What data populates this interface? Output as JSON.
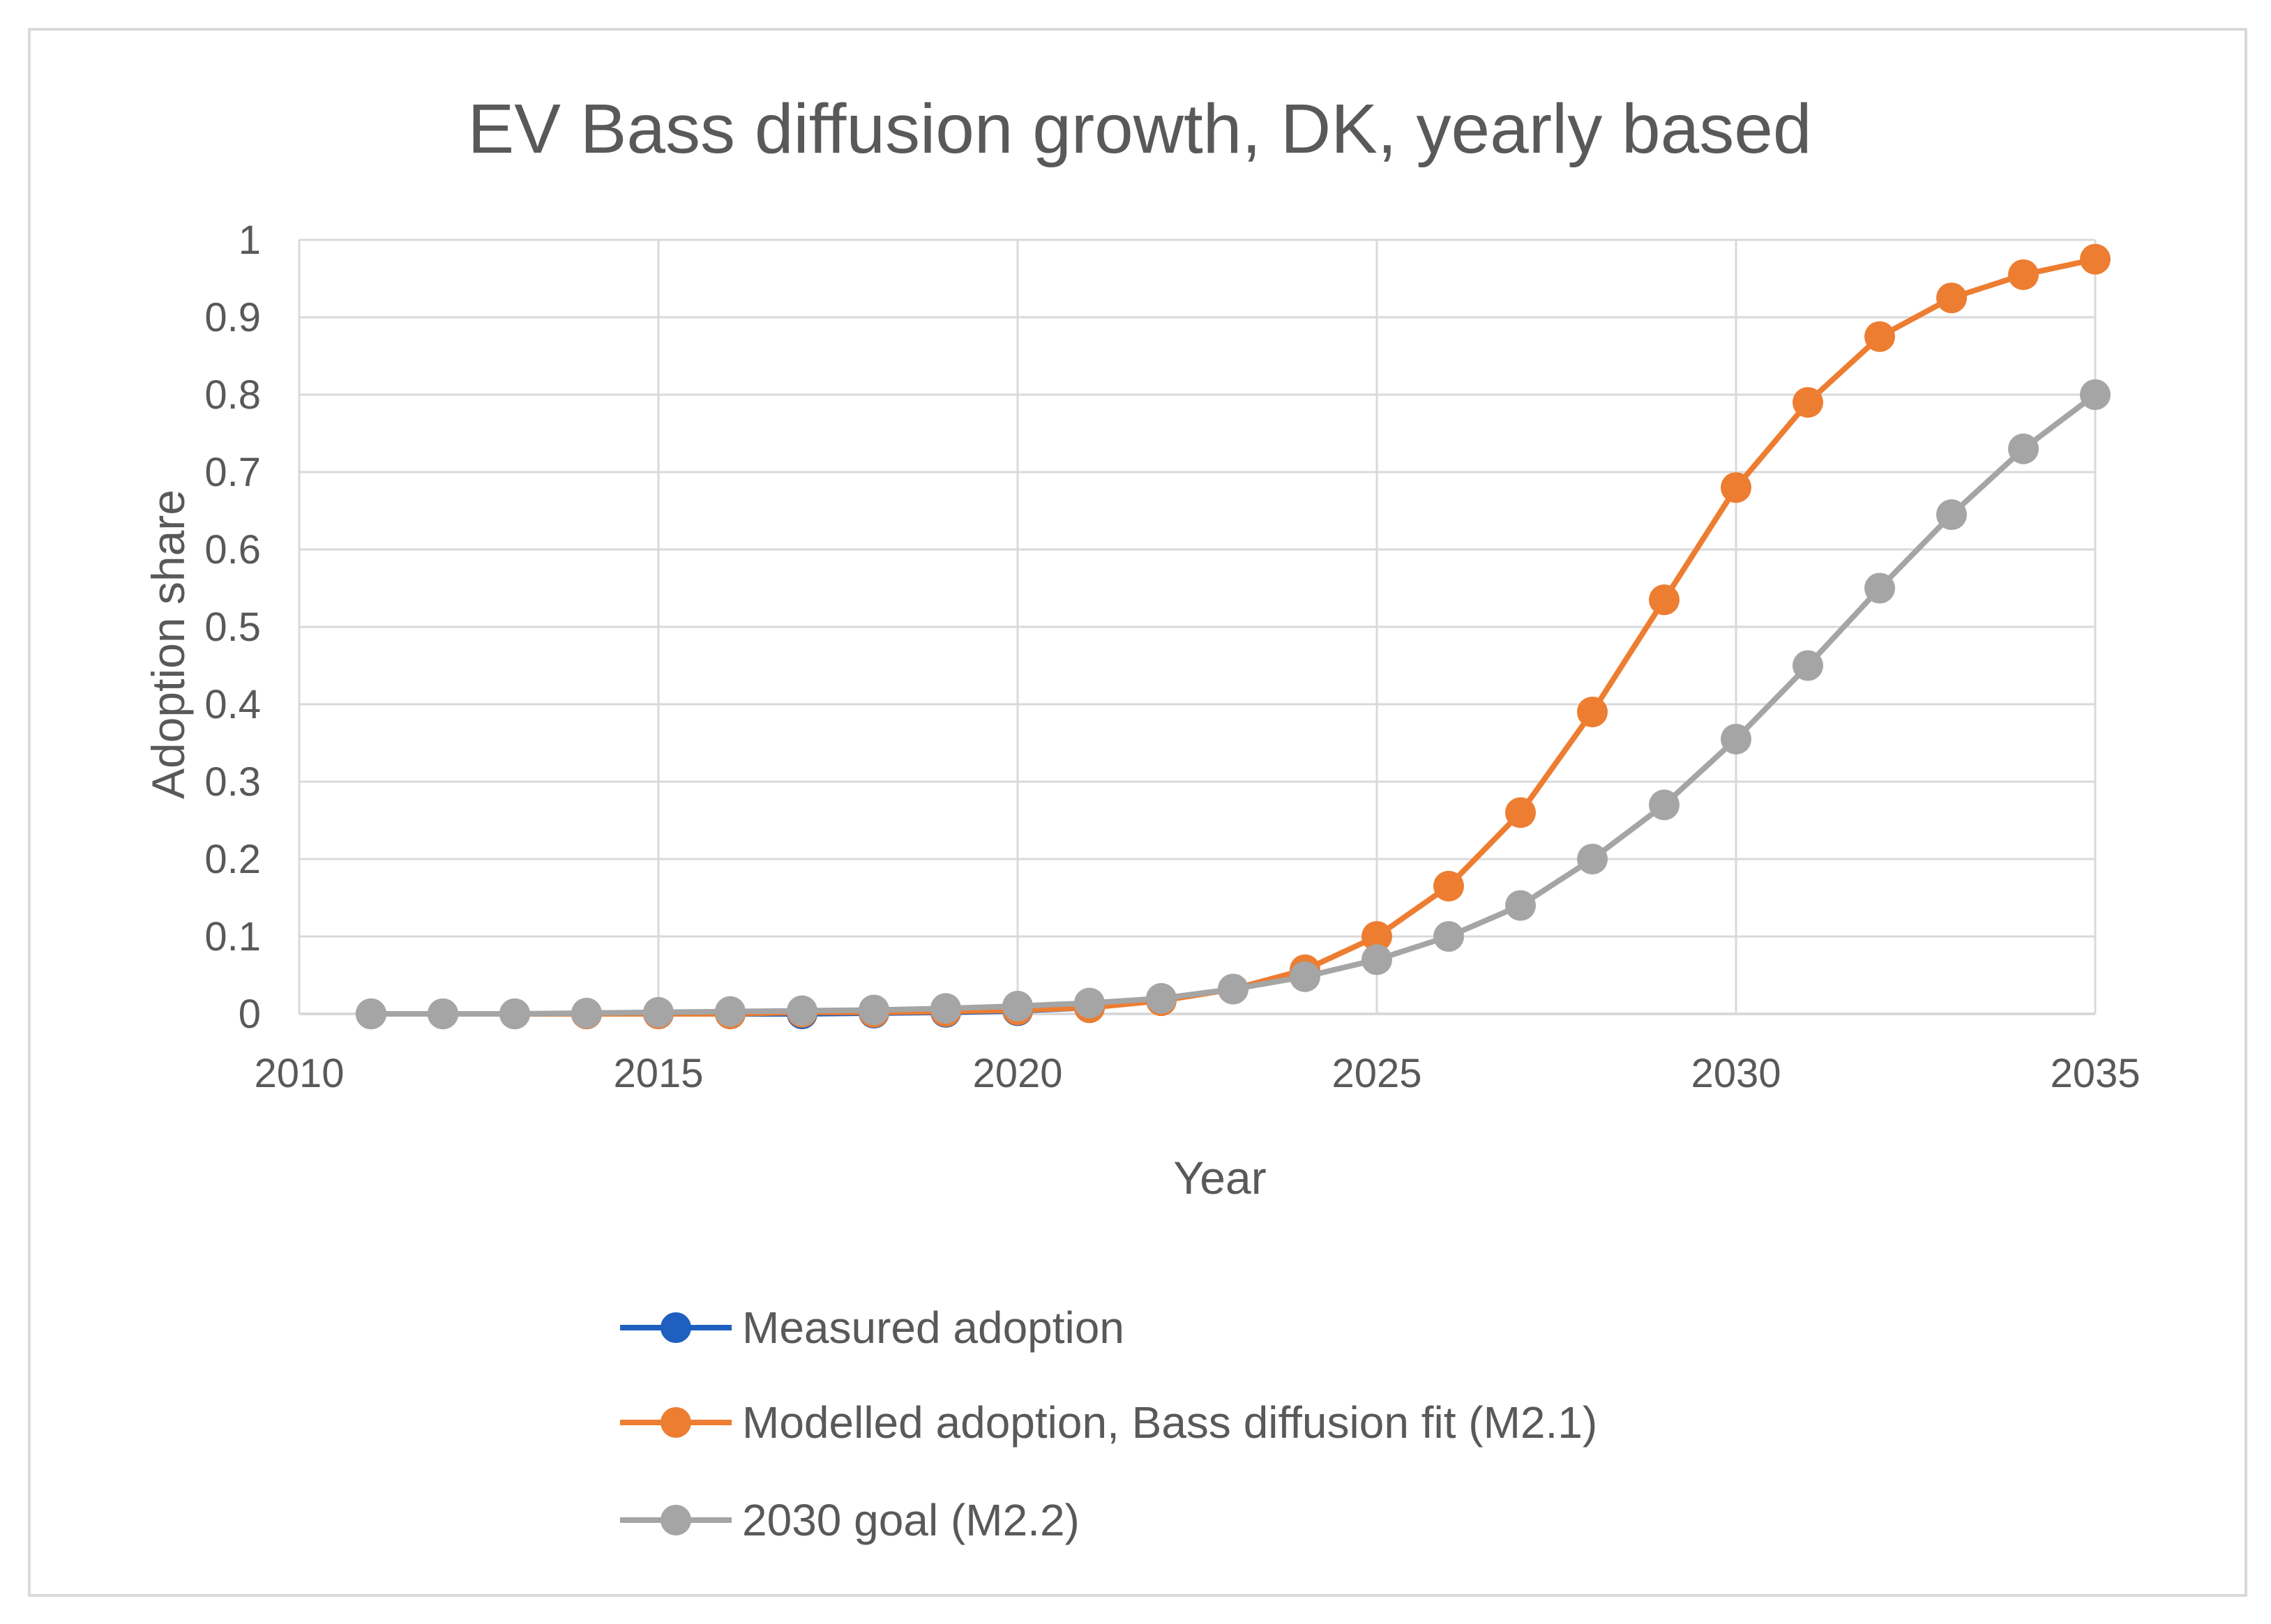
{
  "chart_data": {
    "type": "line",
    "title": "EV Bass diffusion growth, DK, yearly based",
    "xlabel": "Year",
    "ylabel": "Adoption share",
    "xlim": [
      2010,
      2035
    ],
    "ylim": [
      0,
      1
    ],
    "x_ticks": [
      "2010",
      "2015",
      "2020",
      "2025",
      "2030",
      "2035"
    ],
    "y_ticks": [
      "0",
      "0.1",
      "0.2",
      "0.3",
      "0.4",
      "0.5",
      "0.6",
      "0.7",
      "0.8",
      "0.9",
      "1"
    ],
    "grid": true,
    "legend_position": "bottom",
    "series": [
      {
        "name": "Measured adoption",
        "color": "#1f5fbf",
        "x": [
          2011,
          2012,
          2013,
          2014,
          2015,
          2016,
          2017,
          2018,
          2019,
          2020,
          2021
        ],
        "values": [
          0.0,
          0.0,
          0.0,
          0.0,
          0.0,
          0.0,
          0.0,
          0.001,
          0.002,
          0.004,
          0.008
        ]
      },
      {
        "name": "Modelled adoption, Bass diffusion fit (M2.1)",
        "color": "#ed7d31",
        "x": [
          2011,
          2012,
          2013,
          2014,
          2015,
          2016,
          2017,
          2018,
          2019,
          2020,
          2021,
          2022,
          2023,
          2024,
          2025,
          2026,
          2027,
          2028,
          2029,
          2030,
          2031,
          2032,
          2033,
          2034,
          2035
        ],
        "values": [
          0.0,
          0.0,
          0.0,
          0.0,
          0.0,
          0.0,
          0.002,
          0.002,
          0.003,
          0.005,
          0.008,
          0.017,
          0.032,
          0.057,
          0.1,
          0.165,
          0.26,
          0.39,
          0.535,
          0.68,
          0.79,
          0.875,
          0.925,
          0.955,
          0.975
        ]
      },
      {
        "name": "2030 goal (M2.2)",
        "color": "#a5a5a5",
        "x": [
          2011,
          2012,
          2013,
          2014,
          2015,
          2016,
          2017,
          2018,
          2019,
          2020,
          2021,
          2022,
          2023,
          2024,
          2025,
          2026,
          2027,
          2028,
          2029,
          2030,
          2031,
          2032,
          2033,
          2034,
          2035
        ],
        "values": [
          0.0,
          0.0,
          0.0,
          0.001,
          0.002,
          0.003,
          0.004,
          0.005,
          0.007,
          0.01,
          0.014,
          0.02,
          0.032,
          0.048,
          0.07,
          0.1,
          0.14,
          0.2,
          0.27,
          0.355,
          0.45,
          0.55,
          0.645,
          0.73,
          0.8
        ]
      }
    ]
  }
}
